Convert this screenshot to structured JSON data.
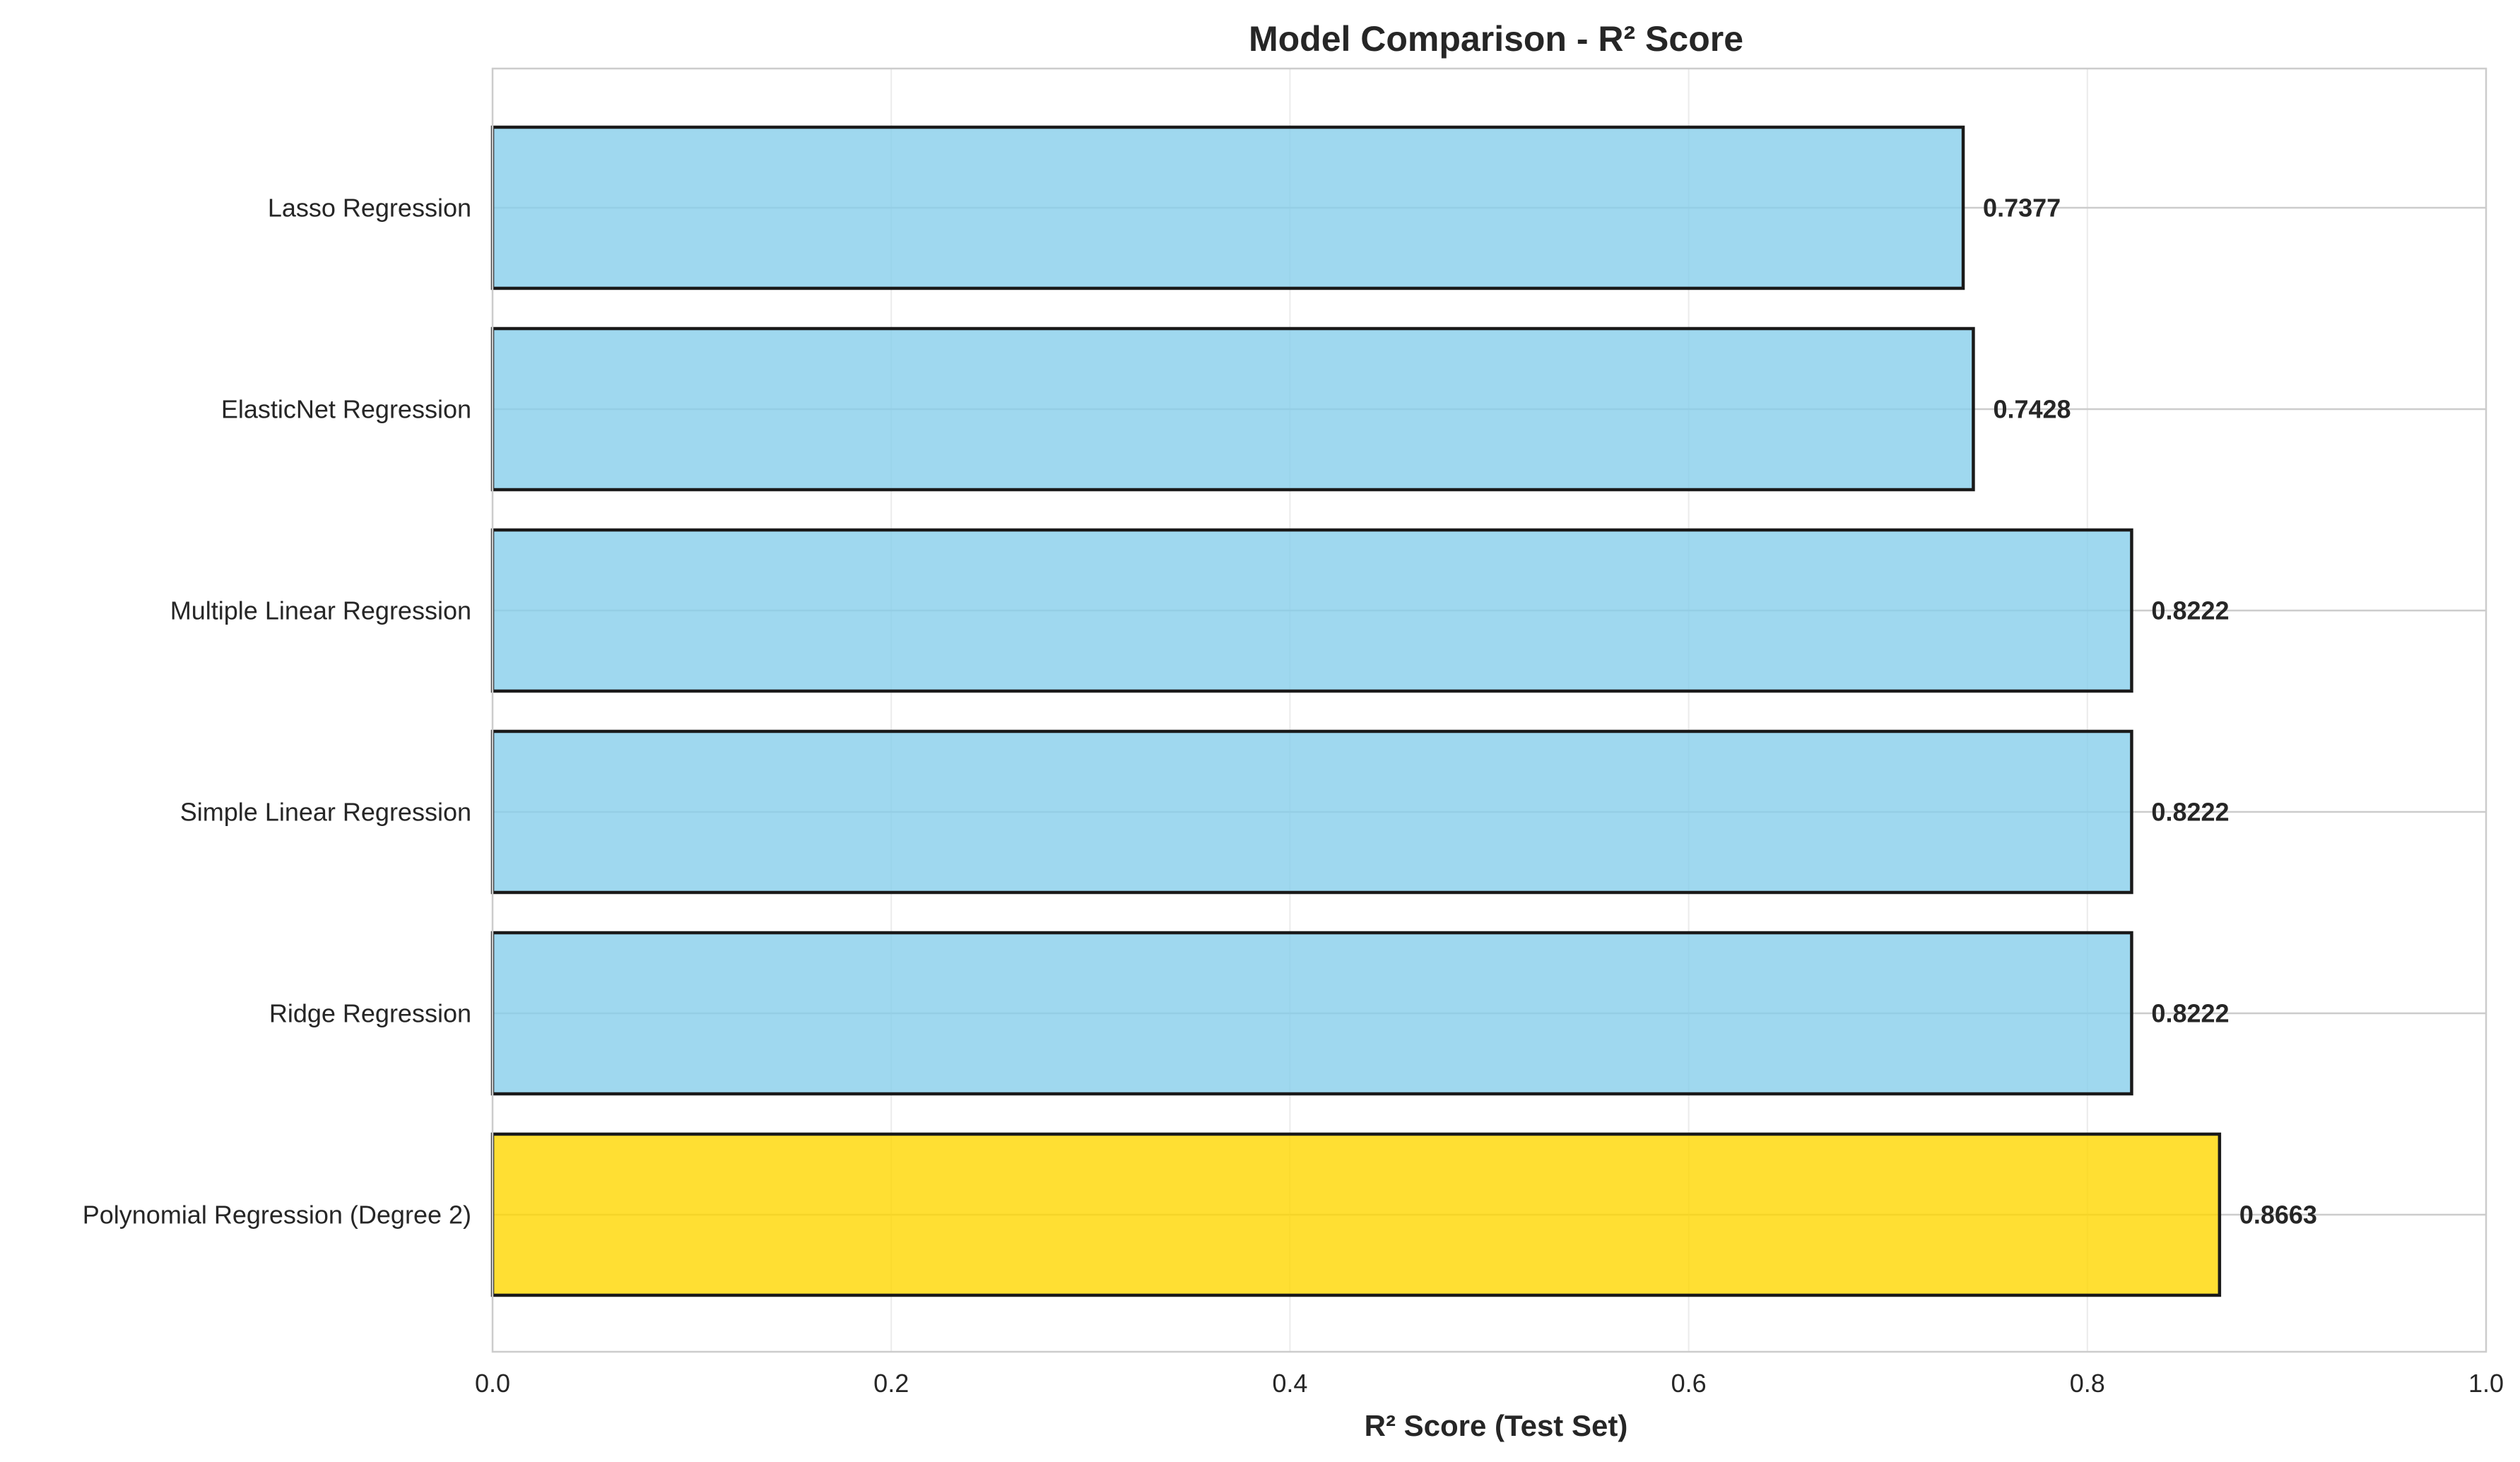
{
  "chart_data": {
    "type": "bar",
    "orientation": "horizontal",
    "title": "Model Comparison - R² Score",
    "xlabel": "R² Score (Test Set)",
    "ylabel": "",
    "xlim": [
      0,
      1.0
    ],
    "xticks": [
      "0.0",
      "0.2",
      "0.4",
      "0.6",
      "0.8",
      "1.0"
    ],
    "xtick_values": [
      0,
      0.2,
      0.4,
      0.6,
      0.8,
      1.0
    ],
    "grid": true,
    "categories": [
      "Lasso Regression",
      "ElasticNet Regression",
      "Multiple Linear Regression",
      "Simple Linear Regression",
      "Ridge Regression",
      "Polynomial Regression (Degree 2)"
    ],
    "values": [
      0.7377,
      0.7428,
      0.8222,
      0.8222,
      0.8222,
      0.8663
    ],
    "value_labels": [
      "0.7377",
      "0.7428",
      "0.8222",
      "0.8222",
      "0.8222",
      "0.8663"
    ],
    "highlight_index": 5,
    "colors": {
      "bar": "#87CEEB",
      "highlight": "#FFD700",
      "edge": "#1a1a1a"
    }
  }
}
